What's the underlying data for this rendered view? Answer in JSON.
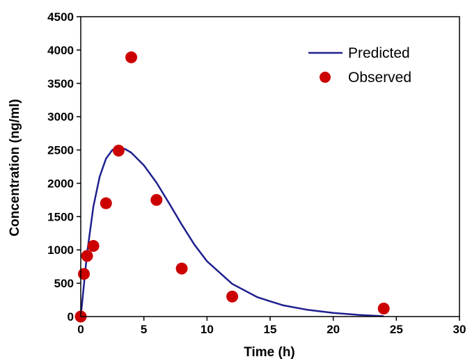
{
  "chart_data": {
    "type": "scatter",
    "title": "",
    "xlabel": "Time (h)",
    "ylabel": "Concentration (ng/ml)",
    "xlim": [
      0,
      30
    ],
    "ylim": [
      0,
      4500
    ],
    "x_ticks": [
      0,
      5,
      10,
      15,
      20,
      25,
      30
    ],
    "y_ticks": [
      0,
      500,
      1000,
      1500,
      2000,
      2500,
      3000,
      3500,
      4000,
      4500
    ],
    "grid": false,
    "legend_position": "top-right",
    "series": [
      {
        "name": "Predicted",
        "kind": "line",
        "color": "#1f1f8f",
        "x": [
          0,
          0.5,
          1,
          1.5,
          2,
          2.5,
          3,
          3.5,
          4,
          5,
          6,
          7,
          8,
          9,
          10,
          12,
          14,
          16,
          18,
          20,
          22,
          24
        ],
        "y": [
          0,
          950,
          1650,
          2100,
          2370,
          2500,
          2530,
          2515,
          2460,
          2270,
          2010,
          1700,
          1380,
          1080,
          830,
          490,
          290,
          170,
          100,
          55,
          25,
          5
        ]
      },
      {
        "name": "Observed",
        "kind": "scatter",
        "color": "#cc0000",
        "x": [
          0,
          0.25,
          0.5,
          1,
          2,
          3,
          4,
          6,
          8,
          12,
          24
        ],
        "y": [
          0,
          640,
          910,
          1060,
          1700,
          2490,
          3890,
          1750,
          720,
          300,
          120
        ]
      }
    ]
  }
}
